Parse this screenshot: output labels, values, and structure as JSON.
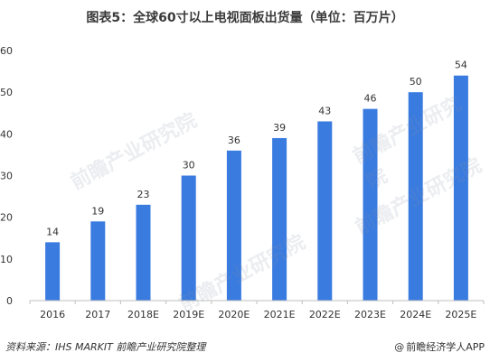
{
  "title": "图表5：全球60寸以上电视面板出货量（单位：百万片）",
  "source": "资料来源：IHS MARKIT  前瞻产业研究院整理",
  "brand": "前瞻经济学人APP",
  "brand_prefix": "@",
  "watermark_text": "前瞻产业研究院",
  "colors": {
    "bar": "#3a7be0",
    "axis": "#bfbfbf",
    "grid": "#e6e6e6",
    "text": "#333333"
  },
  "chart_data": {
    "type": "bar",
    "categories": [
      "2016",
      "2017",
      "2018E",
      "2019E",
      "2020E",
      "2021E",
      "2022E",
      "2023E",
      "2024E",
      "2025E"
    ],
    "values": [
      14,
      19,
      23,
      30,
      36,
      39,
      43,
      46,
      50,
      54
    ],
    "ylim": [
      0,
      60
    ],
    "yticks": [
      0,
      10,
      20,
      30,
      40,
      50,
      60
    ],
    "grid": false,
    "data_labels": true
  }
}
